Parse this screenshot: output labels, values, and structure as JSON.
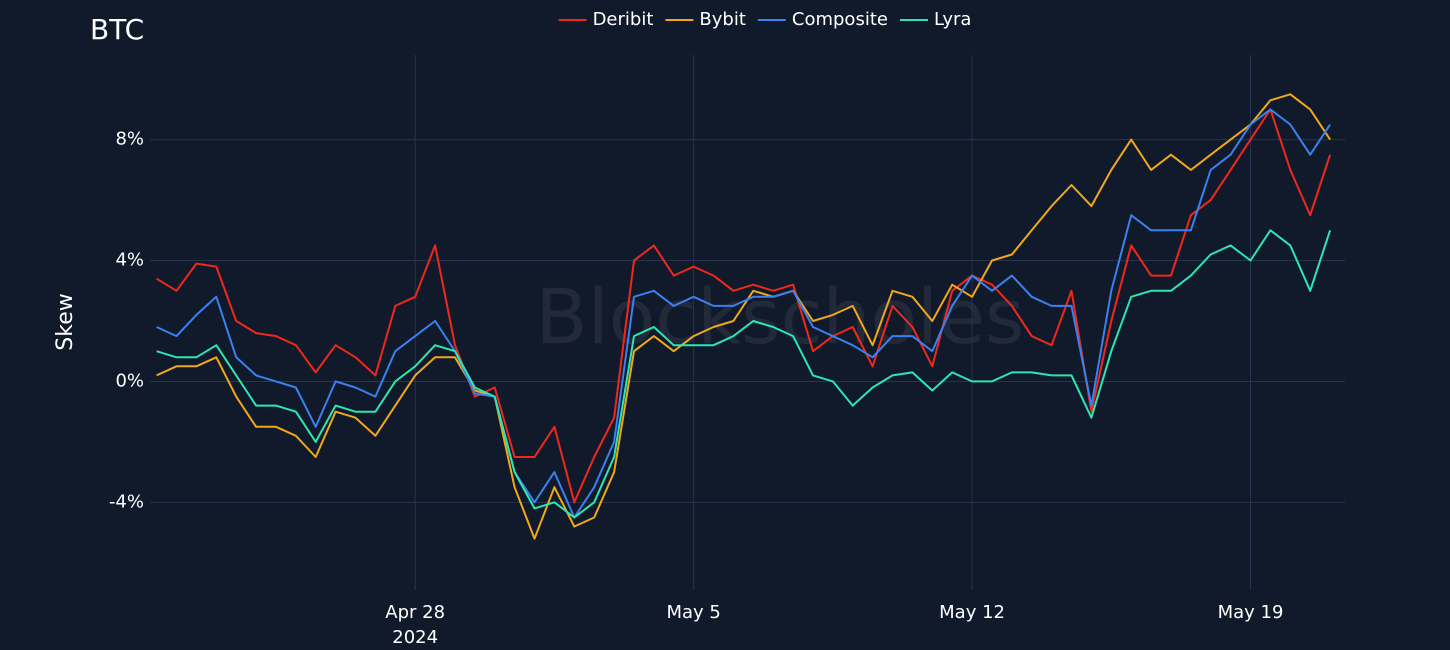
{
  "chart_data": {
    "type": "line",
    "title": "BTC",
    "y_label": "Skew",
    "watermark": "Blockscholes",
    "x_year_label": "2024",
    "x": [
      "2024-04-21T12:00",
      "2024-04-22T00:00",
      "2024-04-22T12:00",
      "2024-04-23T00:00",
      "2024-04-23T12:00",
      "2024-04-24T00:00",
      "2024-04-24T12:00",
      "2024-04-25T00:00",
      "2024-04-25T12:00",
      "2024-04-26T00:00",
      "2024-04-26T12:00",
      "2024-04-27T00:00",
      "2024-04-27T12:00",
      "2024-04-28T00:00",
      "2024-04-28T12:00",
      "2024-04-29T00:00",
      "2024-04-29T12:00",
      "2024-04-30T00:00",
      "2024-04-30T12:00",
      "2024-05-01T00:00",
      "2024-05-01T12:00",
      "2024-05-02T00:00",
      "2024-05-02T12:00",
      "2024-05-03T00:00",
      "2024-05-03T12:00",
      "2024-05-04T00:00",
      "2024-05-04T12:00",
      "2024-05-05T00:00",
      "2024-05-05T12:00",
      "2024-05-06T00:00",
      "2024-05-06T12:00",
      "2024-05-07T00:00",
      "2024-05-07T12:00",
      "2024-05-08T00:00",
      "2024-05-08T12:00",
      "2024-05-09T00:00",
      "2024-05-09T12:00",
      "2024-05-10T00:00",
      "2024-05-10T12:00",
      "2024-05-11T00:00",
      "2024-05-11T12:00",
      "2024-05-12T00:00",
      "2024-05-12T12:00",
      "2024-05-13T00:00",
      "2024-05-13T12:00",
      "2024-05-14T00:00",
      "2024-05-14T12:00",
      "2024-05-15T00:00",
      "2024-05-15T12:00",
      "2024-05-16T00:00",
      "2024-05-16T12:00",
      "2024-05-17T00:00",
      "2024-05-17T12:00",
      "2024-05-18T00:00",
      "2024-05-18T12:00",
      "2024-05-19T00:00",
      "2024-05-19T12:00",
      "2024-05-20T00:00",
      "2024-05-20T12:00",
      "2024-05-21T00:00"
    ],
    "series": [
      {
        "name": "Deribit",
        "color": "#f0281c",
        "values": [
          3.4,
          3.0,
          3.9,
          3.8,
          2.0,
          1.6,
          1.5,
          1.2,
          0.3,
          1.2,
          0.8,
          0.2,
          2.5,
          2.8,
          4.5,
          1.2,
          -0.5,
          -0.2,
          -2.5,
          -2.5,
          -1.5,
          -4.0,
          -2.5,
          -1.2,
          4.0,
          4.5,
          3.5,
          3.8,
          3.5,
          3.0,
          3.2,
          3.0,
          3.2,
          1.0,
          1.5,
          1.8,
          0.5,
          2.5,
          1.8,
          0.5,
          3.0,
          3.5,
          3.2,
          2.5,
          1.5,
          1.2,
          3.0,
          -1.0,
          2.0,
          4.5,
          3.5,
          3.5,
          5.5,
          6.0,
          7.0,
          8.0,
          9.0,
          7.0,
          5.5,
          7.5
        ]
      },
      {
        "name": "Bybit",
        "color": "#f0a81a",
        "values": [
          0.2,
          0.5,
          0.5,
          0.8,
          -0.5,
          -1.5,
          -1.5,
          -1.8,
          -2.5,
          -1.0,
          -1.2,
          -1.8,
          -0.8,
          0.2,
          0.8,
          0.8,
          -0.3,
          -0.5,
          -3.5,
          -5.2,
          -3.5,
          -4.8,
          -4.5,
          -3.0,
          1.0,
          1.5,
          1.0,
          1.5,
          1.8,
          2.0,
          3.0,
          2.8,
          3.0,
          2.0,
          2.2,
          2.5,
          1.2,
          3.0,
          2.8,
          2.0,
          3.2,
          2.8,
          4.0,
          4.2,
          5.0,
          5.8,
          6.5,
          5.8,
          7.0,
          8.0,
          7.0,
          7.5,
          7.0,
          7.5,
          8.0,
          8.5,
          9.3,
          9.5,
          9.0,
          8.0
        ]
      },
      {
        "name": "Composite",
        "color": "#3b80f0",
        "values": [
          1.8,
          1.5,
          2.2,
          2.8,
          0.8,
          0.2,
          0,
          -0.2,
          -1.5,
          0,
          -0.2,
          -0.5,
          1.0,
          1.5,
          2.0,
          1.0,
          -0.4,
          -0.5,
          -3.0,
          -4.0,
          -3.0,
          -4.5,
          -3.5,
          -2.0,
          2.8,
          3.0,
          2.5,
          2.8,
          2.5,
          2.5,
          2.8,
          2.8,
          3.0,
          1.8,
          1.5,
          1.2,
          0.8,
          1.5,
          1.5,
          1.0,
          2.5,
          3.5,
          3.0,
          3.5,
          2.8,
          2.5,
          2.5,
          -0.8,
          3.0,
          5.5,
          5.0,
          5.0,
          5.0,
          7.0,
          7.5,
          8.5,
          9.0,
          8.5,
          7.5,
          8.5
        ]
      },
      {
        "name": "Lyra",
        "color": "#2ee6b0",
        "values": [
          1.0,
          0.8,
          0.8,
          1.2,
          0.2,
          -0.8,
          -0.8,
          -1.0,
          -2.0,
          -0.8,
          -1.0,
          -1.0,
          0,
          0.5,
          1.2,
          1.0,
          -0.2,
          -0.5,
          -3.0,
          -4.2,
          -4.0,
          -4.5,
          -4.0,
          -2.5,
          1.5,
          1.8,
          1.2,
          1.2,
          1.2,
          1.5,
          2.0,
          1.8,
          1.5,
          0.2,
          0,
          -0.8,
          -0.2,
          0.2,
          0.3,
          -0.3,
          0.3,
          0,
          0,
          0.3,
          0.3,
          0.2,
          0.2,
          -1.2,
          1.0,
          2.8,
          3.0,
          3.0,
          3.5,
          4.2,
          4.5,
          4.0,
          5.0,
          4.5,
          3.0,
          5.0
        ]
      }
    ],
    "xlim": [
      "2024-04-21T08:00",
      "2024-05-21T09:00"
    ],
    "xticks": [
      {
        "value": "2024-04-28T00:00",
        "label": "Apr 28"
      },
      {
        "value": "2024-05-05T00:00",
        "label": "May 5"
      },
      {
        "value": "2024-05-12T00:00",
        "label": "May 12"
      },
      {
        "value": "2024-05-19T00:00",
        "label": "May 19"
      }
    ],
    "ylim": [
      -6.9,
      10.8
    ],
    "yticks": [
      {
        "value": -4,
        "label": "-4%"
      },
      {
        "value": 0,
        "label": "0%"
      },
      {
        "value": 4,
        "label": "4%"
      },
      {
        "value": 8,
        "label": "8%"
      }
    ],
    "grid": true,
    "legend": "top"
  }
}
